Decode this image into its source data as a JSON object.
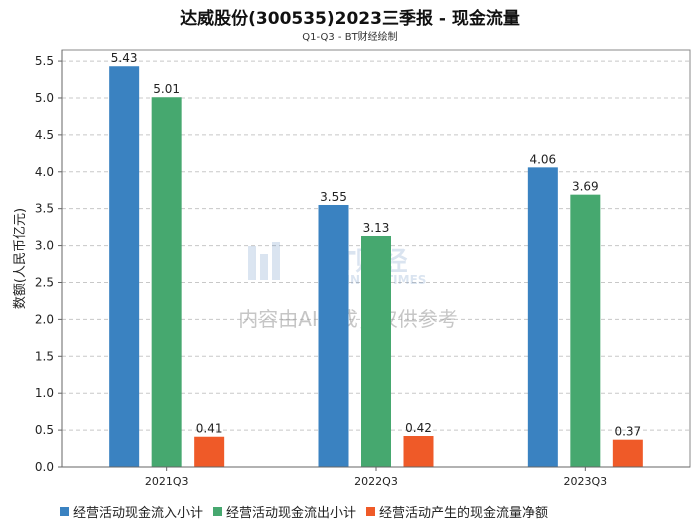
{
  "chart_data": {
    "type": "bar",
    "title": "达威股份(300535)2023三季报 - 现金流量",
    "subtitle": "Q1-Q3 - BT财经绘制",
    "ylabel": "数额(人民币亿元)",
    "xlabel": "",
    "categories": [
      "2021Q3",
      "2022Q3",
      "2023Q3"
    ],
    "ylim": [
      0,
      5.65
    ],
    "yticks": [
      0.0,
      0.5,
      1.0,
      1.5,
      2.0,
      2.5,
      3.0,
      3.5,
      4.0,
      4.5,
      5.0,
      5.5
    ],
    "grid": true,
    "legend_position": "bottom",
    "series": [
      {
        "name": "经营活动现金流入小计",
        "color": "#3a82c1",
        "values": [
          5.43,
          3.55,
          4.06
        ]
      },
      {
        "name": "经营活动现金流出小计",
        "color": "#46a86f",
        "values": [
          5.01,
          3.13,
          3.69
        ]
      },
      {
        "name": "经营活动产生的现金流量净额",
        "color": "#ef5a28",
        "values": [
          0.41,
          0.42,
          0.37
        ]
      }
    ]
  },
  "watermark": {
    "brand": "BT财经",
    "brand_sub": "BUSINESSTIMES",
    "notice": "内容由AI生成，仅供参考"
  }
}
